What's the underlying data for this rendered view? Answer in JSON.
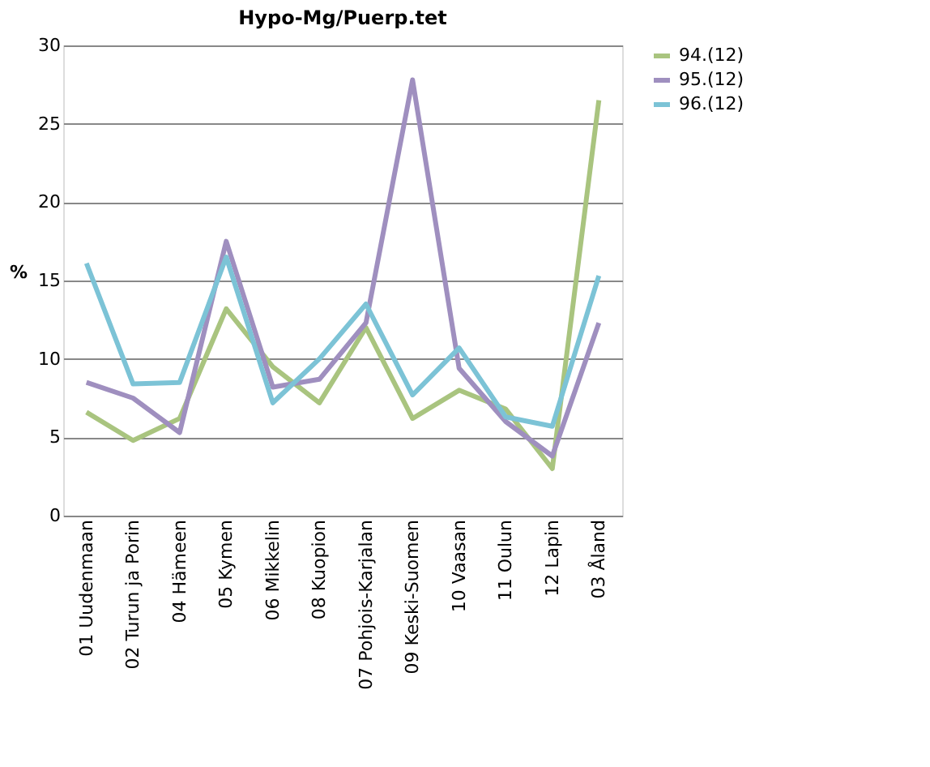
{
  "chart_data": {
    "type": "line",
    "title": "Hypo-Mg/Puerp.tet",
    "ylabel": "%",
    "categories": [
      "01 Uudenmaan",
      "02 Turun ja Porin",
      "04 Hämeen",
      "05 Kymen",
      "06 Mikkelin",
      "08 Kuopion",
      "07 Pohjois-Karjalan",
      "09 Keski-Suomen",
      "10 Vaasan",
      "11 Oulun",
      "12 Lapin",
      "03 Åland"
    ],
    "series": [
      {
        "name": "94.(12)",
        "color": "#a9c47f",
        "values": [
          6.6,
          4.8,
          6.2,
          13.2,
          9.5,
          7.2,
          12.0,
          6.2,
          8.0,
          6.8,
          3.0,
          26.5
        ]
      },
      {
        "name": "95.(12)",
        "color": "#9f8fbf",
        "values": [
          8.5,
          7.5,
          5.3,
          17.5,
          8.2,
          8.7,
          12.3,
          27.8,
          9.4,
          6.0,
          3.8,
          12.3
        ]
      },
      {
        "name": "96.(12)",
        "color": "#7cc3d6",
        "values": [
          16.1,
          8.4,
          8.5,
          16.5,
          7.2,
          10.0,
          13.5,
          7.7,
          10.7,
          6.3,
          5.7,
          15.3
        ]
      }
    ],
    "ylim": [
      0,
      30
    ],
    "yticks": [
      0,
      5,
      10,
      15,
      20,
      25,
      30
    ],
    "grid": "y",
    "legend": "right",
    "marker": "none",
    "line_style": "solid"
  }
}
